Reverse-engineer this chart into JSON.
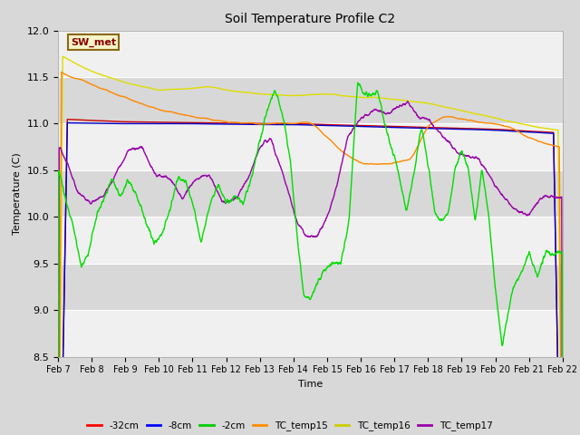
{
  "title": "Soil Temperature Profile C2",
  "xlabel": "Time",
  "ylabel": "Temperature (C)",
  "ylim": [
    8.5,
    12.0
  ],
  "yticks": [
    8.5,
    9.0,
    9.5,
    10.0,
    10.5,
    11.0,
    11.5,
    12.0
  ],
  "xtick_labels": [
    "Feb 7",
    "Feb 8",
    "Feb 9",
    "Feb 10",
    "Feb 11",
    "Feb 12",
    "Feb 13",
    "Feb 14",
    "Feb 15",
    "Feb 16",
    "Feb 17",
    "Feb 18",
    "Feb 19",
    "Feb 20",
    "Feb 21",
    "Feb 22"
  ],
  "sw_met_label": "SW_met",
  "sw_met_bg": "#f5f5c8",
  "sw_met_border": "#8b6914",
  "sw_met_text_color": "#8b0000",
  "legend_entries": [
    "-32cm",
    "-8cm",
    "-2cm",
    "TC_temp15",
    "TC_temp16",
    "TC_temp17"
  ],
  "legend_colors": [
    "#ff0000",
    "#0000ff",
    "#00cc00",
    "#ff8c00",
    "#cccc00",
    "#9900aa"
  ],
  "series_colors": {
    "neg32cm": "#cc0000",
    "neg8cm": "#0000cc",
    "neg2cm": "#00dd00",
    "TC_temp15": "#ff8800",
    "TC_temp16": "#dddd00",
    "TC_temp17": "#9900aa"
  },
  "fig_bg": "#d8d8d8",
  "axes_bg": "#e8e8e8",
  "band_light": "#f0f0f0",
  "band_dark": "#d8d8d8"
}
